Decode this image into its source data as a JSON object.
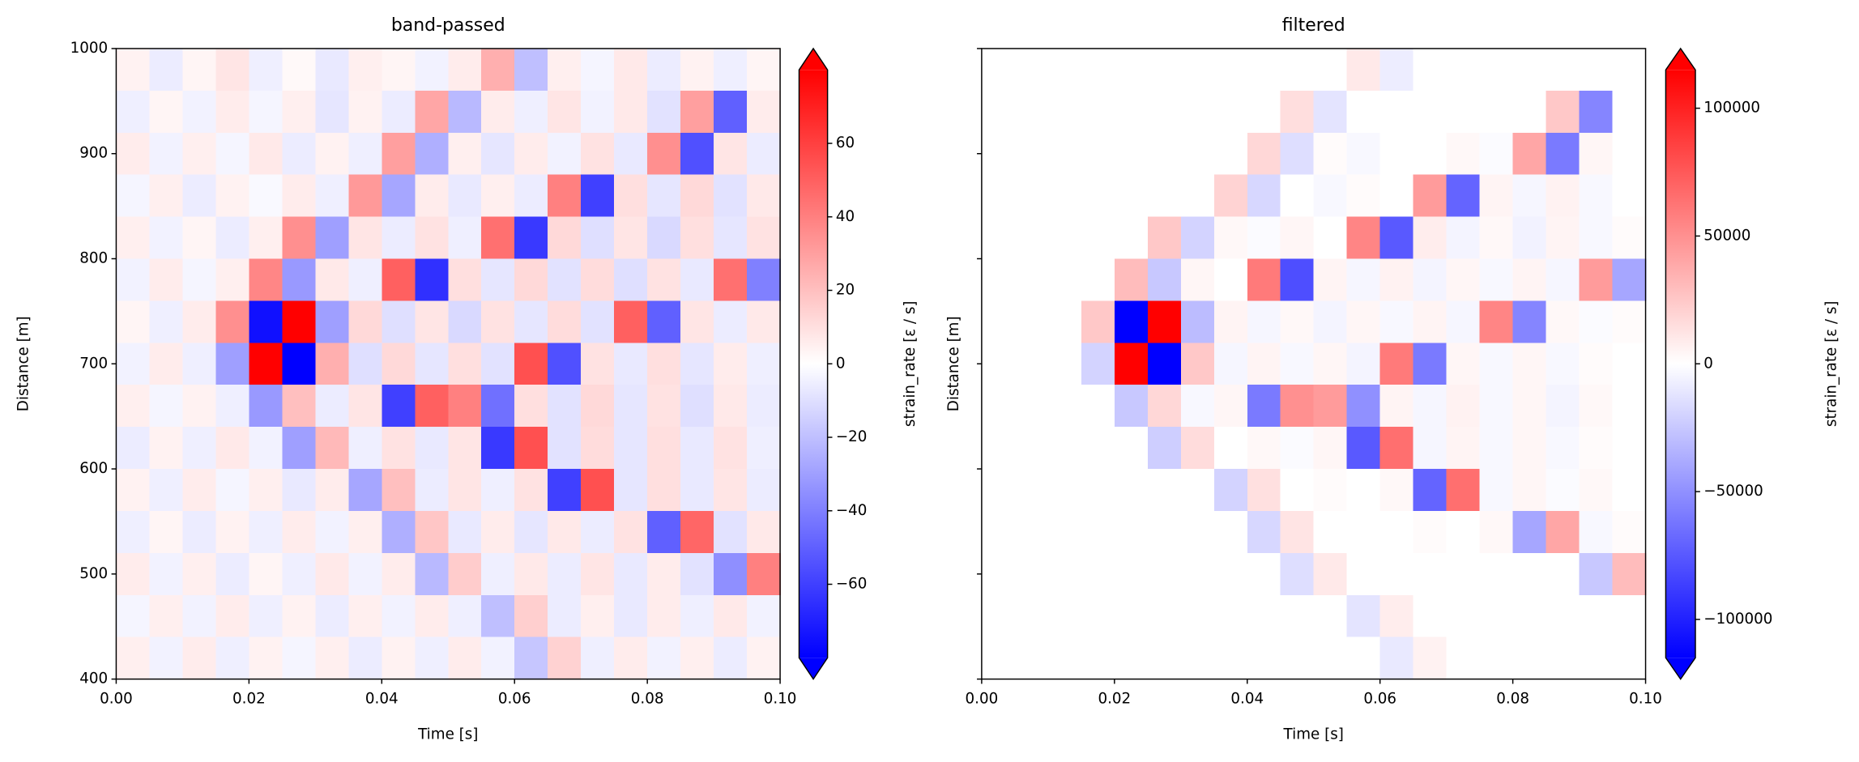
{
  "chart_data": [
    {
      "type": "heatmap",
      "title": "band-passed",
      "x_label": "Time [s]",
      "y_label": "Distance [m]",
      "colorbar_label": "strain_rate [ε / s]",
      "cmap": [
        "#0000ff",
        "#ffffff",
        "#ff0000"
      ],
      "extend": "both",
      "x": [
        0.0025,
        0.0075,
        0.0125,
        0.0175,
        0.0225,
        0.0275,
        0.0325,
        0.0375,
        0.0425,
        0.0475,
        0.0525,
        0.0575,
        0.0625,
        0.0675,
        0.0725,
        0.0775,
        0.0825,
        0.0875,
        0.0925,
        0.0975
      ],
      "y": [
        980,
        940,
        900,
        860,
        820,
        780,
        740,
        700,
        660,
        620,
        580,
        540,
        500,
        460,
        420
      ],
      "values": [
        [
          4,
          -6,
          3,
          8,
          -5,
          2,
          -7,
          5,
          3,
          -4,
          6,
          25,
          -20,
          5,
          -3,
          7,
          -6,
          4,
          -5,
          3
        ],
        [
          -5,
          3,
          -4,
          6,
          -3,
          5,
          -8,
          4,
          -6,
          28,
          -22,
          6,
          -5,
          8,
          -4,
          7,
          -9,
          30,
          -50,
          6
        ],
        [
          6,
          -4,
          5,
          -3,
          7,
          -6,
          4,
          -5,
          30,
          -25,
          5,
          -8,
          6,
          -4,
          9,
          -7,
          35,
          -55,
          8,
          -6
        ],
        [
          -3,
          5,
          -6,
          4,
          -2,
          6,
          -5,
          32,
          -28,
          6,
          -7,
          5,
          -6,
          40,
          -60,
          10,
          -8,
          12,
          -9,
          7
        ],
        [
          5,
          -4,
          3,
          -6,
          5,
          35,
          -30,
          8,
          -6,
          9,
          -5,
          45,
          -62,
          12,
          -10,
          8,
          -12,
          10,
          -8,
          9
        ],
        [
          -4,
          6,
          -3,
          5,
          38,
          -32,
          7,
          -5,
          50,
          -65,
          10,
          -8,
          12,
          -9,
          11,
          -10,
          9,
          -7,
          45,
          -40
        ],
        [
          3,
          -5,
          6,
          35,
          -75,
          80,
          -30,
          12,
          -10,
          8,
          -12,
          9,
          -8,
          11,
          -9,
          50,
          -50,
          8,
          -6,
          7
        ],
        [
          -4,
          6,
          -5,
          -30,
          80,
          -80,
          25,
          -10,
          12,
          -8,
          10,
          -9,
          55,
          -55,
          9,
          -7,
          10,
          -8,
          6,
          -5
        ],
        [
          5,
          -3,
          4,
          -5,
          -32,
          20,
          -6,
          8,
          -60,
          50,
          40,
          -45,
          10,
          -9,
          12,
          -8,
          9,
          -10,
          7,
          -6
        ],
        [
          -6,
          4,
          -5,
          7,
          -4,
          -30,
          22,
          -5,
          9,
          -7,
          8,
          -62,
          55,
          -9,
          11,
          -8,
          10,
          -7,
          9,
          -5
        ],
        [
          4,
          -5,
          6,
          -3,
          5,
          -7,
          6,
          -28,
          20,
          -6,
          8,
          -5,
          9,
          -60,
          55,
          -8,
          10,
          -7,
          8,
          -6
        ],
        [
          -5,
          3,
          -6,
          4,
          -5,
          6,
          -4,
          5,
          -25,
          18,
          -7,
          6,
          -8,
          7,
          -6,
          9,
          -50,
          48,
          -9,
          7
        ],
        [
          6,
          -4,
          5,
          -6,
          3,
          -5,
          7,
          -4,
          6,
          -22,
          16,
          -5,
          7,
          -6,
          8,
          -7,
          6,
          -9,
          -35,
          40
        ],
        [
          -3,
          5,
          -4,
          6,
          -5,
          4,
          -6,
          5,
          -4,
          6,
          -5,
          -20,
          15,
          -6,
          5,
          -7,
          6,
          -5,
          7,
          -4
        ],
        [
          5,
          -4,
          6,
          -5,
          4,
          -3,
          5,
          -6,
          4,
          -5,
          6,
          -4,
          -18,
          14,
          -5,
          6,
          -4,
          5,
          -6,
          4
        ]
      ],
      "xlim": [
        0,
        0.1
      ],
      "ylim": [
        400,
        1000
      ],
      "clim": [
        -80,
        80
      ],
      "xticks": [
        {
          "value": 0,
          "label": "0.00"
        },
        {
          "value": 0.02,
          "label": "0.02"
        },
        {
          "value": 0.04,
          "label": "0.04"
        },
        {
          "value": 0.06,
          "label": "0.06"
        },
        {
          "value": 0.08,
          "label": "0.08"
        },
        {
          "value": 0.1,
          "label": "0.10"
        }
      ],
      "yticks": [
        400,
        500,
        600,
        700,
        800,
        900,
        1000
      ],
      "ytick_labels": true,
      "cticks": [
        {
          "value": -60,
          "label": "−60"
        },
        {
          "value": -40,
          "label": "−40"
        },
        {
          "value": -20,
          "label": "−20"
        },
        0,
        20,
        40,
        60
      ]
    },
    {
      "type": "heatmap",
      "title": "filtered",
      "x_label": "Time [s]",
      "y_label": "Distance [m]",
      "colorbar_label": "strain_rate [ε / s]",
      "cmap": [
        "#0000ff",
        "#ffffff",
        "#ff0000"
      ],
      "extend": "both",
      "x": [
        0.0025,
        0.0075,
        0.0125,
        0.0175,
        0.0225,
        0.0275,
        0.0325,
        0.0375,
        0.0425,
        0.0475,
        0.0525,
        0.0575,
        0.0625,
        0.0675,
        0.0725,
        0.0775,
        0.0825,
        0.0875,
        0.0925,
        0.0975
      ],
      "y": [
        980,
        940,
        900,
        860,
        820,
        780,
        740,
        700,
        660,
        620,
        580,
        540,
        500,
        460,
        420
      ],
      "values": [
        [
          0,
          0,
          0,
          0,
          0,
          0,
          0,
          0,
          0,
          0,
          0,
          10000,
          -8000,
          0,
          0,
          0,
          0,
          0,
          0,
          0
        ],
        [
          0,
          0,
          0,
          0,
          0,
          0,
          0,
          0,
          0,
          15000,
          -12000,
          0,
          0,
          0,
          0,
          0,
          0,
          25000,
          -55000,
          0
        ],
        [
          0,
          0,
          0,
          0,
          0,
          0,
          0,
          0,
          18000,
          -15000,
          2000,
          -3000,
          0,
          0,
          3000,
          -2000,
          40000,
          -60000,
          4000,
          0
        ],
        [
          0,
          0,
          0,
          0,
          0,
          0,
          0,
          20000,
          -18000,
          0,
          -3000,
          2000,
          0,
          45000,
          -70000,
          5000,
          -4000,
          6000,
          -3000,
          0
        ],
        [
          0,
          0,
          0,
          0,
          0,
          25000,
          -20000,
          3000,
          -2000,
          4000,
          0,
          55000,
          -75000,
          8000,
          -5000,
          3000,
          -6000,
          5000,
          -3000,
          2000
        ],
        [
          0,
          0,
          0,
          0,
          30000,
          -25000,
          4000,
          0,
          60000,
          -80000,
          5000,
          -4000,
          6000,
          -5000,
          4000,
          -3000,
          5000,
          -4000,
          45000,
          -40000
        ],
        [
          0,
          0,
          0,
          25000,
          -115000,
          115000,
          -30000,
          5000,
          -4000,
          3000,
          -5000,
          4000,
          -3000,
          5000,
          -4000,
          55000,
          -55000,
          3000,
          -2000,
          2000
        ],
        [
          0,
          0,
          0,
          -20000,
          115000,
          -115000,
          25000,
          -4000,
          5000,
          -3000,
          4000,
          -5000,
          60000,
          -60000,
          4000,
          -3000,
          4000,
          -3000,
          2000,
          0
        ],
        [
          0,
          0,
          0,
          0,
          -25000,
          18000,
          -3000,
          4000,
          -60000,
          50000,
          45000,
          -50000,
          5000,
          -4000,
          6000,
          -3000,
          4000,
          -5000,
          3000,
          0
        ],
        [
          0,
          0,
          0,
          0,
          0,
          -22000,
          16000,
          0,
          3000,
          -2000,
          4000,
          -75000,
          65000,
          -4000,
          5000,
          -3000,
          4000,
          -3000,
          2000,
          0
        ],
        [
          0,
          0,
          0,
          0,
          0,
          0,
          0,
          -20000,
          14000,
          0,
          2000,
          0,
          3000,
          -70000,
          65000,
          -3000,
          4000,
          -2000,
          3000,
          0
        ],
        [
          0,
          0,
          0,
          0,
          0,
          0,
          0,
          0,
          -18000,
          12000,
          0,
          0,
          0,
          2000,
          0,
          3000,
          -40000,
          40000,
          -3000,
          2000
        ],
        [
          0,
          0,
          0,
          0,
          0,
          0,
          0,
          0,
          0,
          -15000,
          10000,
          0,
          0,
          0,
          0,
          0,
          0,
          0,
          -25000,
          30000
        ],
        [
          0,
          0,
          0,
          0,
          0,
          0,
          0,
          0,
          0,
          0,
          0,
          -12000,
          8000,
          0,
          0,
          0,
          0,
          0,
          0,
          0
        ],
        [
          0,
          0,
          0,
          0,
          0,
          0,
          0,
          0,
          0,
          0,
          0,
          0,
          -10000,
          6000,
          0,
          0,
          0,
          0,
          0,
          0
        ]
      ],
      "xlim": [
        0,
        0.1
      ],
      "ylim": [
        400,
        1000
      ],
      "clim": [
        -115000,
        115000
      ],
      "xticks": [
        {
          "value": 0,
          "label": "0.00"
        },
        {
          "value": 0.02,
          "label": "0.02"
        },
        {
          "value": 0.04,
          "label": "0.04"
        },
        {
          "value": 0.06,
          "label": "0.06"
        },
        {
          "value": 0.08,
          "label": "0.08"
        },
        {
          "value": 0.1,
          "label": "0.10"
        }
      ],
      "yticks": [
        400,
        500,
        600,
        700,
        800,
        900,
        1000
      ],
      "ytick_labels": false,
      "cticks": [
        {
          "value": -100000,
          "label": "−100000"
        },
        {
          "value": -50000,
          "label": "−50000"
        },
        0,
        50000,
        100000
      ]
    }
  ]
}
